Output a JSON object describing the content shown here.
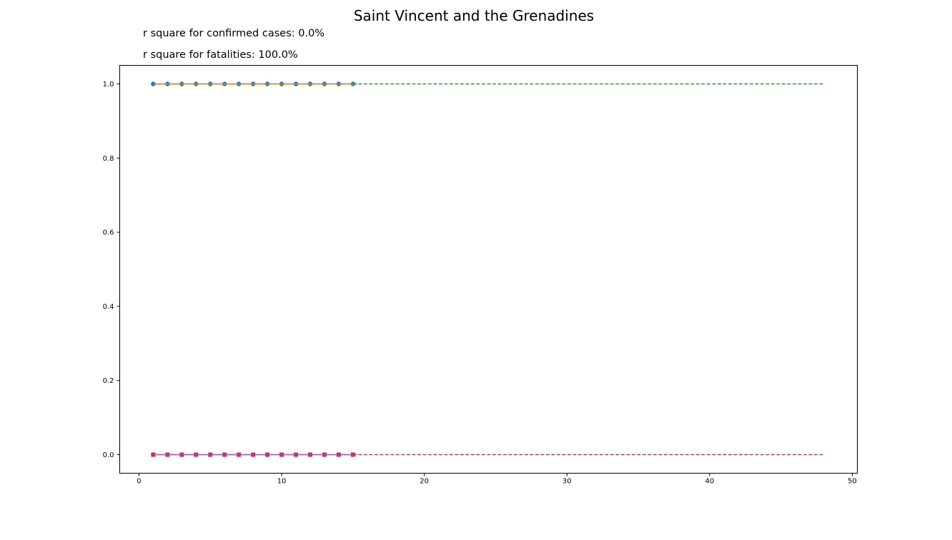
{
  "title": "Saint Vincent and the Grenadines",
  "annotations": {
    "confirmed": "r square for confirmed cases: 0.0%",
    "fatalities": "r square for fatalities: 100.0%"
  },
  "chart_data": {
    "type": "line",
    "title": "Saint Vincent and the Grenadines",
    "xlabel": "",
    "ylabel": "",
    "xlim": [
      -1.35,
      50.35
    ],
    "ylim": [
      -0.05,
      1.05
    ],
    "xticks": [
      0,
      10,
      20,
      30,
      40,
      50
    ],
    "yticks": [
      0.0,
      0.2,
      0.4,
      0.6,
      0.8,
      1.0
    ],
    "ytick_labels": [
      "0.0",
      "0.2",
      "0.4",
      "0.6",
      "0.8",
      "1.0"
    ],
    "grid": false,
    "legend": "none",
    "series": [
      {
        "marker": "circle",
        "line": "solid",
        "color": "#1f77b4",
        "x": [
          1,
          2,
          3,
          4,
          5,
          6,
          7,
          8,
          9,
          10,
          11,
          12,
          13,
          14,
          15
        ],
        "values": [
          1,
          1,
          1,
          1,
          1,
          1,
          1,
          1,
          1,
          1,
          1,
          1,
          1,
          1,
          1
        ]
      },
      {
        "marker": "none",
        "line": "solid",
        "color": "#ff7f0e",
        "x": [
          1,
          15.3
        ],
        "values": [
          1,
          1
        ]
      },
      {
        "marker": "none",
        "line": "dashed",
        "color": "#2ca02c",
        "x": [
          15,
          48
        ],
        "values": [
          1,
          1
        ]
      },
      {
        "marker": "square",
        "line": "solid",
        "color": "#d62728",
        "x": [
          1,
          2,
          3,
          4,
          5,
          6,
          7,
          8,
          9,
          10,
          11,
          12,
          13,
          14,
          15
        ],
        "values": [
          0,
          0,
          0,
          0,
          0,
          0,
          0,
          0,
          0,
          0,
          0,
          0,
          0,
          0,
          0
        ]
      },
      {
        "marker": "none",
        "line": "solid",
        "color": "#9467bd",
        "x": [
          1,
          15.3
        ],
        "values": [
          0,
          0
        ]
      },
      {
        "marker": "none",
        "line": "dashed",
        "color": "#8c564b",
        "x": [
          15,
          48
        ],
        "values": [
          0,
          0
        ]
      }
    ]
  }
}
